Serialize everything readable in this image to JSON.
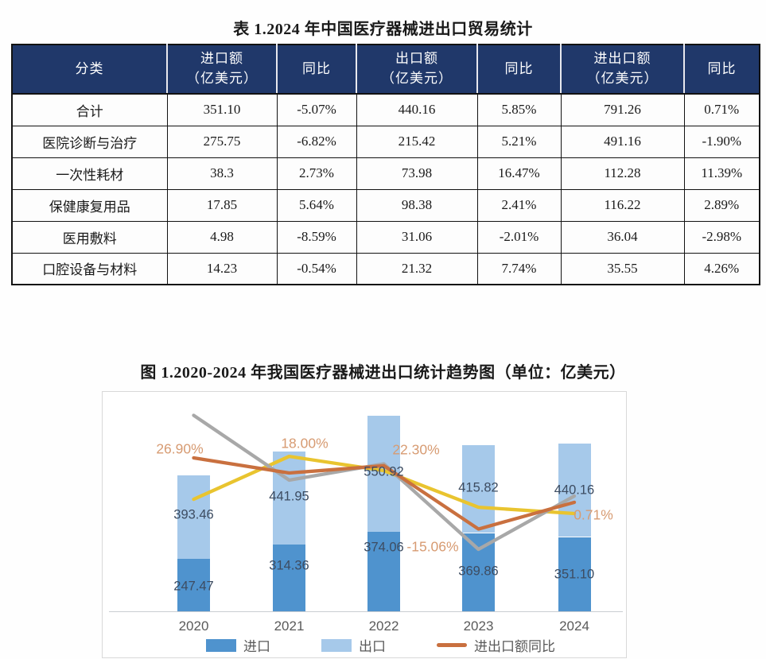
{
  "document": {
    "table_title": "表 1.2024 年中国医疗器械进出口贸易统计",
    "figure_title": "图 1.2020-2024 年我国医疗器械进出口统计趋势图（单位：亿美元）"
  },
  "table": {
    "columns": [
      {
        "label": "分类",
        "sub": ""
      },
      {
        "label": "进口额",
        "sub": "（亿美元）"
      },
      {
        "label": "同比",
        "sub": ""
      },
      {
        "label": "出口额",
        "sub": "（亿美元）"
      },
      {
        "label": "同比",
        "sub": ""
      },
      {
        "label": "进出口额",
        "sub": "（亿美元）"
      },
      {
        "label": "同比",
        "sub": ""
      }
    ],
    "rows": [
      [
        "合计",
        "351.10",
        "-5.07%",
        "440.16",
        "5.85%",
        "791.26",
        "0.71%"
      ],
      [
        "医院诊断与治疗",
        "275.75",
        "-6.82%",
        "215.42",
        "5.21%",
        "491.16",
        "-1.90%"
      ],
      [
        "一次性耗材",
        "38.3",
        "2.73%",
        "73.98",
        "16.47%",
        "112.28",
        "11.39%"
      ],
      [
        "保健康复用品",
        "17.85",
        "5.64%",
        "98.38",
        "2.41%",
        "116.22",
        "2.89%"
      ],
      [
        "医用敷料",
        "4.98",
        "-8.59%",
        "31.06",
        "-2.01%",
        "36.04",
        "-2.98%"
      ],
      [
        "口腔设备与材料",
        "14.23",
        "-0.54%",
        "21.32",
        "7.74%",
        "35.55",
        "4.26%"
      ]
    ]
  },
  "chart_data": {
    "type": "bar",
    "subtype": "stacked-bars-with-line-overlays",
    "title": "图 1.2020-2024 年我国医疗器械进出口统计趋势图（单位：亿美元）",
    "categories": [
      "2020",
      "2021",
      "2022",
      "2023",
      "2024"
    ],
    "series": [
      {
        "name": "进口",
        "kind": "bar-stacked",
        "unit": "亿美元",
        "color": "#4f93ce",
        "values": [
          247.47,
          314.36,
          374.06,
          369.86,
          351.1
        ],
        "labels": [
          "247.47",
          "314.36",
          "374.06",
          "369.86",
          "351.10"
        ]
      },
      {
        "name": "出口",
        "kind": "bar-stacked",
        "unit": "亿美元",
        "color": "#a6c9ea",
        "values": [
          393.46,
          441.95,
          550.92,
          415.82,
          440.16
        ],
        "labels": [
          "393.46",
          "441.95",
          "550.92",
          "415.82",
          "440.16"
        ]
      },
      {
        "name": "进出口额同比",
        "kind": "line",
        "unit": "%",
        "color": "#c9703f",
        "values": [
          26.9,
          18.0,
          22.3,
          -15.06,
          0.71
        ],
        "labels": [
          "26.90%",
          "18.00%",
          "22.30%",
          "-15.06%",
          "0.71%"
        ]
      },
      {
        "name": "unlabeled-yellow-line",
        "kind": "line",
        "unit": "%",
        "color": "#e9c42f",
        "estimated": true,
        "values": [
          2.5,
          27.8,
          19.4,
          -2.2,
          -5.9
        ],
        "labels": []
      },
      {
        "name": "unlabeled-gray-line",
        "kind": "line",
        "unit": "%",
        "color": "#a8a8a8",
        "estimated": true,
        "values": [
          52.0,
          13.8,
          23.4,
          -27.0,
          4.4
        ],
        "labels": []
      }
    ],
    "legend": [
      {
        "label": "进口",
        "swatch": "bar",
        "color": "#4f93ce"
      },
      {
        "label": "出口",
        "swatch": "bar",
        "color": "#a6c9ea"
      },
      {
        "label": "进出口额同比",
        "swatch": "line",
        "color": "#c9703f"
      }
    ],
    "legend_position": "bottom",
    "grid": false,
    "axes": {
      "y_left_visible": false,
      "y_right_visible": false,
      "left_axis_range_implied": [
        0,
        930
      ],
      "right_axis_pct_range_implied": [
        -30,
        55
      ]
    }
  },
  "colors": {
    "header_bg": "#20386a",
    "header_text": "#ffffff",
    "table_border": "#121212",
    "import_bar": "#4f93ce",
    "export_bar": "#a6c9ea",
    "yoy_line": "#c9703f",
    "yellow_line": "#e9c42f",
    "gray_line": "#a8a8a8",
    "pct_label": "#d79b72",
    "value_label": "#3d4c61",
    "axis_text": "#5a5a5a",
    "panel_border": "#d9d9d9"
  }
}
